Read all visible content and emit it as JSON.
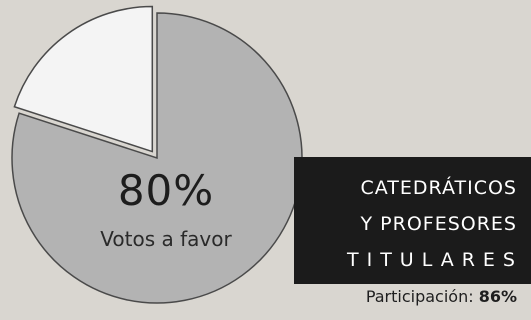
{
  "chart_data": {
    "type": "pie",
    "slices": [
      {
        "label": "Votos a favor",
        "value": 80,
        "color": "#b3b3b3"
      },
      {
        "label": "",
        "value": 20,
        "color": "#f4f4f4"
      }
    ],
    "annotation": {
      "value_text": "80%",
      "label": "Votos a favor"
    },
    "title_lines": [
      "CATEDRÁTICOS",
      "Y PROFESORES",
      "TITULARES"
    ],
    "participation": {
      "label": "Participación:",
      "value": "86%"
    }
  }
}
